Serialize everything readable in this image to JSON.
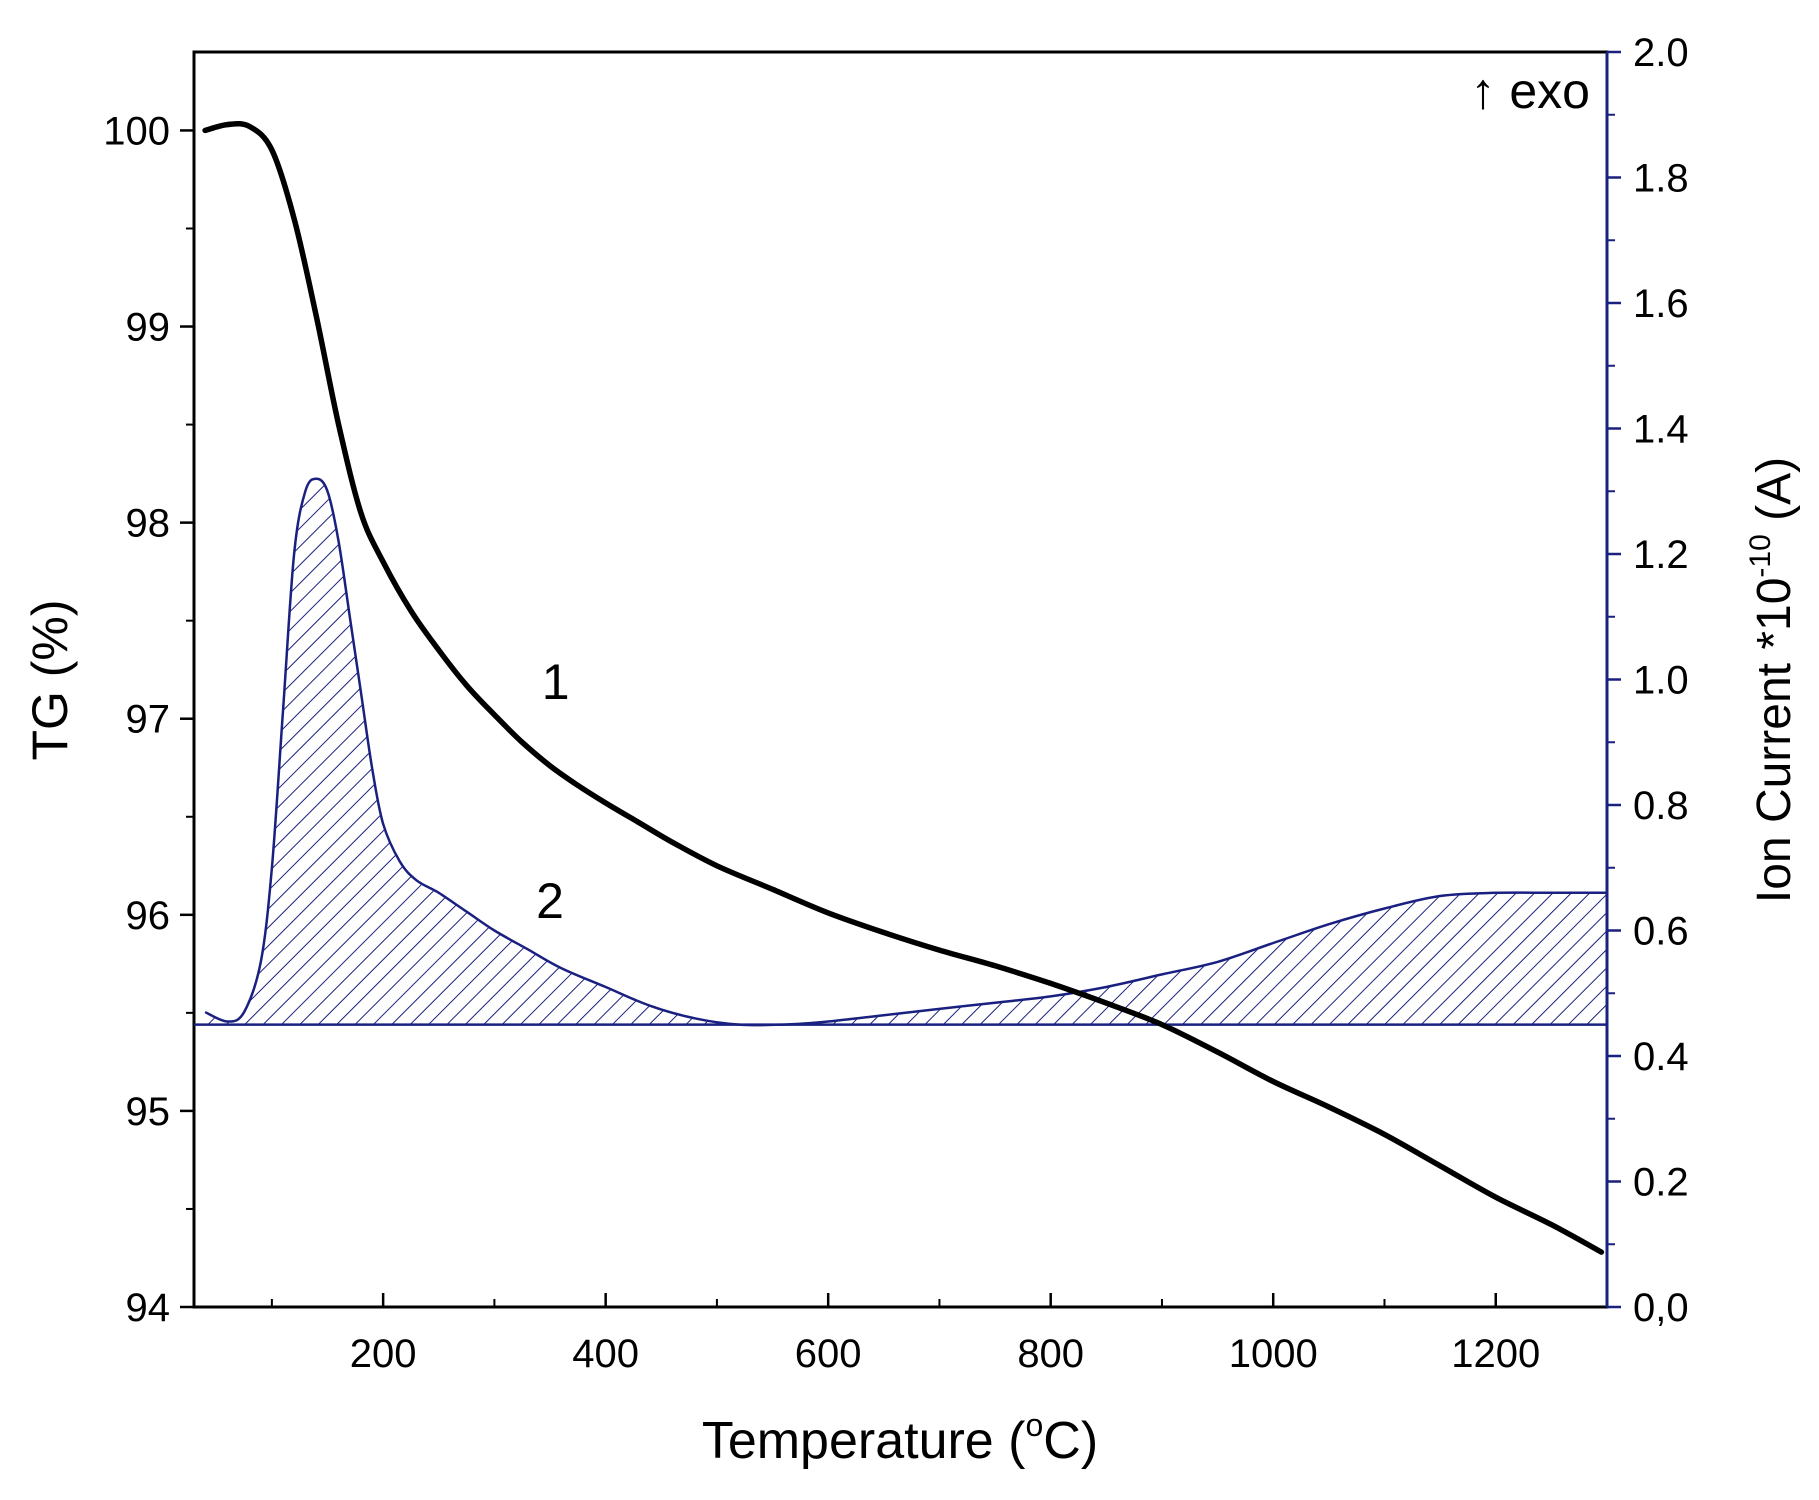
{
  "chart_data": {
    "type": "line",
    "title": "",
    "xlabel": "Temperature (",
    "xlabel_sup": "o",
    "xlabel_unit": "C)",
    "ylabel_left": "TG (%)",
    "ylabel_right": "Ion Current *10",
    "ylabel_right_sup": "-10",
    "ylabel_right_unit": " (A)",
    "xlim": [
      30,
      1300
    ],
    "ylim_left": [
      94,
      100.4
    ],
    "ylim_right": [
      0.0,
      2.0
    ],
    "x_ticks": [
      200,
      400,
      600,
      800,
      1000,
      1200
    ],
    "x_tick_labels": [
      "200",
      "400",
      "600",
      "800",
      "1000",
      "1200"
    ],
    "x_minor_ticks": [
      100,
      300,
      500,
      700,
      900,
      1100
    ],
    "y_left_ticks": [
      94,
      95,
      96,
      97,
      98,
      99,
      100
    ],
    "y_left_tick_labels": [
      "94",
      "95",
      "96",
      "97",
      "98",
      "99",
      "100"
    ],
    "y_right_ticks": [
      0.0,
      0.2,
      0.4,
      0.6,
      0.8,
      1.0,
      1.2,
      1.4,
      1.6,
      1.8,
      2.0
    ],
    "y_right_tick_labels": [
      "0,0",
      "0.2",
      "0.4",
      "0.6",
      "0.8",
      "1.0",
      "1.2",
      "1.4",
      "1.6",
      "1.8",
      "2.0"
    ],
    "corner_annotation": "↑ exo",
    "baseline_right": 0.45,
    "series": [
      {
        "name": "TG",
        "label": "1",
        "axis": "left",
        "color": "#000000",
        "label_position": [
          355,
          97.1
        ],
        "x": [
          40,
          60,
          80,
          100,
          120,
          140,
          160,
          180,
          200,
          225,
          250,
          275,
          300,
          325,
          350,
          375,
          400,
          430,
          460,
          500,
          550,
          600,
          650,
          700,
          750,
          800,
          850,
          900,
          950,
          1000,
          1050,
          1100,
          1150,
          1200,
          1250,
          1295
        ],
        "values": [
          100.0,
          100.03,
          100.02,
          99.9,
          99.55,
          99.05,
          98.5,
          98.05,
          97.8,
          97.55,
          97.35,
          97.17,
          97.02,
          96.88,
          96.76,
          96.66,
          96.57,
          96.47,
          96.37,
          96.25,
          96.13,
          96.01,
          95.91,
          95.82,
          95.74,
          95.65,
          95.55,
          95.44,
          95.3,
          95.15,
          95.02,
          94.88,
          94.72,
          94.56,
          94.42,
          94.28
        ]
      },
      {
        "name": "Ion Current",
        "label": "2",
        "axis": "right",
        "color": "#1a2080",
        "fill": "hatched",
        "label_position": [
          350,
          0.62
        ],
        "x": [
          40,
          60,
          75,
          90,
          100,
          110,
          120,
          130,
          140,
          150,
          160,
          170,
          180,
          190,
          200,
          215,
          230,
          250,
          275,
          300,
          330,
          360,
          400,
          440,
          480,
          520,
          560,
          600,
          650,
          700,
          750,
          800,
          850,
          900,
          950,
          1000,
          1050,
          1100,
          1150,
          1200,
          1250,
          1300
        ],
        "values": [
          0.47,
          0.455,
          0.47,
          0.55,
          0.7,
          0.95,
          1.2,
          1.3,
          1.32,
          1.3,
          1.22,
          1.1,
          0.98,
          0.86,
          0.77,
          0.71,
          0.68,
          0.66,
          0.63,
          0.6,
          0.57,
          0.54,
          0.51,
          0.48,
          0.46,
          0.45,
          0.45,
          0.455,
          0.465,
          0.475,
          0.485,
          0.495,
          0.51,
          0.53,
          0.55,
          0.58,
          0.61,
          0.635,
          0.655,
          0.66,
          0.66,
          0.66
        ]
      }
    ]
  },
  "colors": {
    "tg_line": "#000000",
    "ion_line": "#1a2080",
    "right_axis": "#1a2080",
    "axis": "#000000"
  }
}
